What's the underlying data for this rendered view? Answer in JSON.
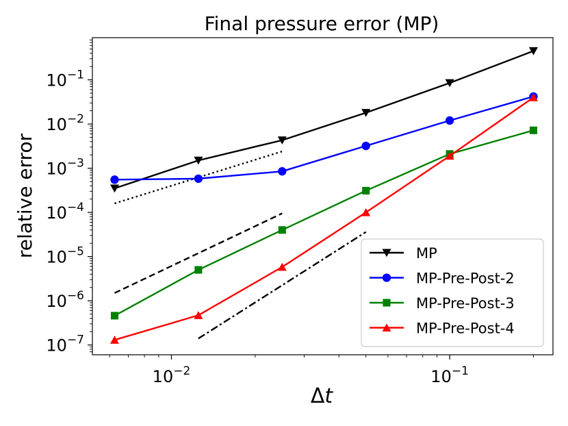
{
  "chart_data": {
    "type": "line",
    "title": "Final pressure error (MP)",
    "xlabel": "Δt",
    "ylabel": "relative error",
    "xscale": "log",
    "yscale": "log",
    "xlim": [
      0.0052,
      0.235
    ],
    "ylim": [
      6e-08,
      0.9
    ],
    "x_ticks": [
      {
        "value": 0.01,
        "base": "10",
        "exp": "−2"
      },
      {
        "value": 0.1,
        "base": "10",
        "exp": "−1"
      }
    ],
    "y_ticks": [
      {
        "value": 1e-07,
        "base": "10",
        "exp": "−7"
      },
      {
        "value": 1e-06,
        "base": "10",
        "exp": "−6"
      },
      {
        "value": 1e-05,
        "base": "10",
        "exp": "−5"
      },
      {
        "value": 0.0001,
        "base": "10",
        "exp": "−4"
      },
      {
        "value": 0.001,
        "base": "10",
        "exp": "−3"
      },
      {
        "value": 0.01,
        "base": "10",
        "exp": "−2"
      },
      {
        "value": 0.1,
        "base": "10",
        "exp": "−1"
      }
    ],
    "x": [
      0.00625,
      0.0125,
      0.025,
      0.05,
      0.1,
      0.2
    ],
    "series": [
      {
        "name": "MP",
        "color": "#000000",
        "marker": "triangle-down",
        "values": [
          0.00035,
          0.0015,
          0.0043,
          0.018,
          0.085,
          0.45
        ]
      },
      {
        "name": "MP-Pre-Post-2",
        "color": "#0000ff",
        "marker": "circle",
        "values": [
          0.00055,
          0.00058,
          0.00085,
          0.0032,
          0.012,
          0.042
        ]
      },
      {
        "name": "MP-Pre-Post-3",
        "color": "#008000",
        "marker": "square",
        "values": [
          4.6e-07,
          5e-06,
          4e-05,
          0.00031,
          0.0021,
          0.0072
        ]
      },
      {
        "name": "MP-Pre-Post-4",
        "color": "#ff0000",
        "marker": "triangle-up",
        "values": [
          1.3e-07,
          4.7e-07,
          5.8e-06,
          0.0001,
          0.0019,
          0.04
        ]
      }
    ],
    "reference_lines": [
      {
        "name": "dotted",
        "dash": "dotted",
        "x": [
          0.00625,
          0.025
        ],
        "y": [
          0.00016,
          0.0024
        ]
      },
      {
        "name": "dashed",
        "dash": "dashed",
        "x": [
          0.00625,
          0.025
        ],
        "y": [
          1.5e-06,
          9.5e-05
        ]
      },
      {
        "name": "dashdot",
        "dash": "dashdot",
        "x": [
          0.0125,
          0.05
        ],
        "y": [
          1.4e-07,
          3.6e-05
        ]
      }
    ],
    "legend_position": "lower-right",
    "grid": false
  }
}
